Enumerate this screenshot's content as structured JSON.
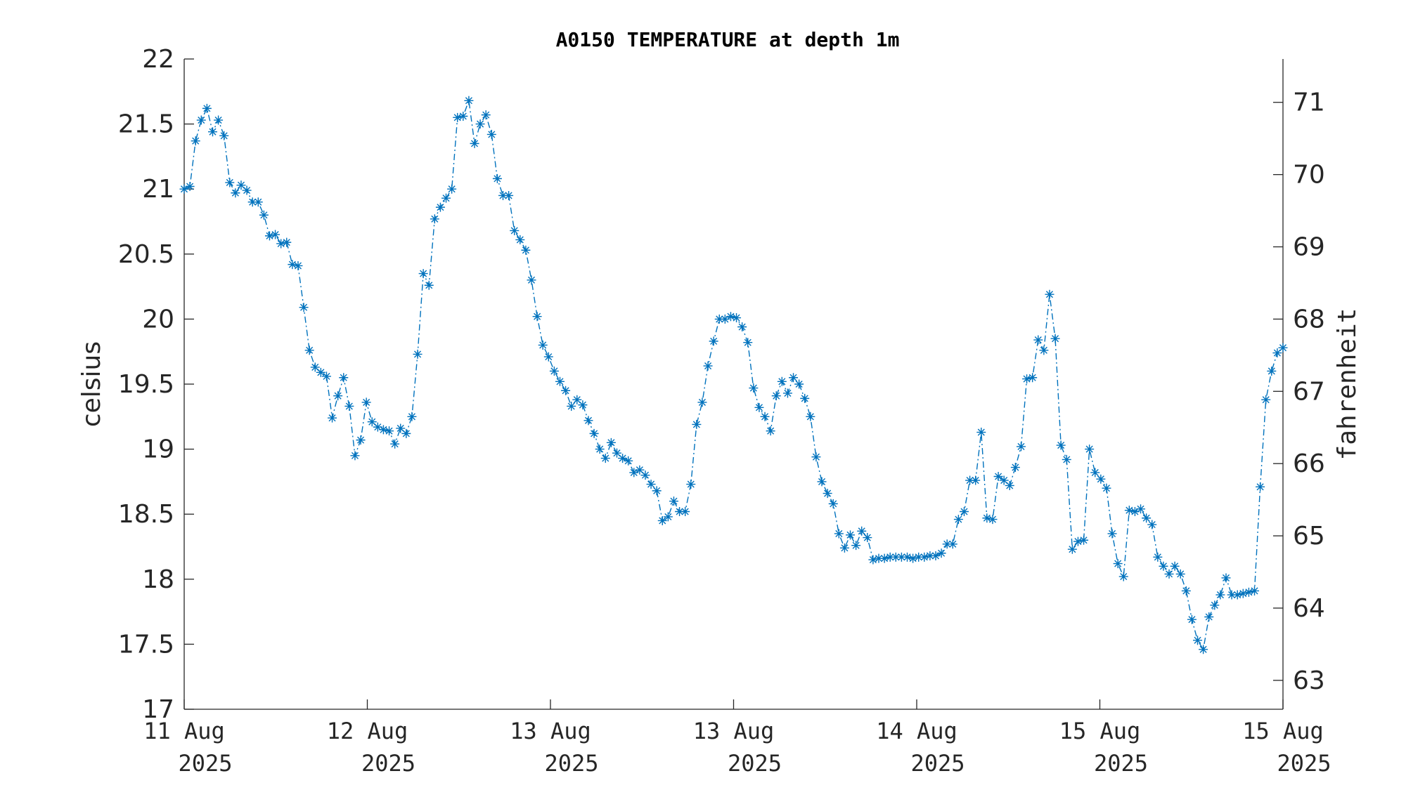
{
  "chart_data": {
    "type": "line",
    "title": "A0150 TEMPERATURE at depth 1m",
    "ylabel": "celsius",
    "ylabel_right": "fahrenheit",
    "ylim": [
      17,
      22
    ],
    "ylim_right": [
      62.6,
      71.6
    ],
    "yticks": [
      "17",
      "17.5",
      "18",
      "18.5",
      "19",
      "19.5",
      "20",
      "20.5",
      "21",
      "21.5",
      "22"
    ],
    "yticks_right": [
      "63",
      "64",
      "65",
      "66",
      "67",
      "68",
      "69",
      "70",
      "71"
    ],
    "xticks": [
      {
        "day": "11 Aug",
        "year": "2025"
      },
      {
        "day": "12 Aug",
        "year": "2025"
      },
      {
        "day": "13 Aug",
        "year": "2025"
      },
      {
        "day": "13 Aug",
        "year": "2025"
      },
      {
        "day": "14 Aug",
        "year": "2025"
      },
      {
        "day": "15 Aug",
        "year": "2025"
      },
      {
        "day": "15 Aug",
        "year": "2025"
      }
    ],
    "line_color": "#0072BD",
    "line_style": "dash-dot",
    "marker": "asterisk",
    "grid": false,
    "series": [
      {
        "values": [
          21.0,
          21.02,
          21.37,
          21.53,
          21.62,
          21.44,
          21.53,
          21.41,
          21.05,
          20.97,
          21.03,
          20.99,
          20.9,
          20.9,
          20.8,
          20.64,
          20.65,
          20.58,
          20.59,
          20.42,
          20.41,
          20.09,
          19.76,
          19.63,
          19.59,
          19.56,
          19.24,
          19.41,
          19.55,
          19.33,
          18.95,
          19.07,
          19.36,
          19.21,
          19.17,
          19.15,
          19.14,
          19.04,
          19.16,
          19.12,
          19.25,
          19.73,
          20.35,
          20.26,
          20.77,
          20.86,
          20.93,
          21.0,
          21.55,
          21.56,
          21.68,
          21.35,
          21.5,
          21.57,
          21.42,
          21.08,
          20.95,
          20.95,
          20.68,
          20.61,
          20.53,
          20.3,
          20.02,
          19.8,
          19.71,
          19.6,
          19.52,
          19.45,
          19.33,
          19.38,
          19.34,
          19.22,
          19.12,
          19.0,
          18.93,
          19.05,
          18.97,
          18.93,
          18.91,
          18.82,
          18.84,
          18.8,
          18.73,
          18.68,
          18.45,
          18.48,
          18.6,
          18.52,
          18.52,
          18.73,
          19.19,
          19.36,
          19.64,
          19.83,
          20.0,
          20.0,
          20.02,
          20.01,
          19.94,
          19.82,
          19.47,
          19.32,
          19.25,
          19.14,
          19.41,
          19.52,
          19.43,
          19.55,
          19.5,
          19.39,
          19.25,
          18.94,
          18.75,
          18.66,
          18.58,
          18.35,
          18.24,
          18.34,
          18.26,
          18.37,
          18.32,
          18.15,
          18.16,
          18.16,
          18.17,
          18.17,
          18.17,
          18.17,
          18.16,
          18.17,
          18.17,
          18.18,
          18.18,
          18.2,
          18.27,
          18.27,
          18.46,
          18.52,
          18.76,
          18.76,
          19.13,
          18.47,
          18.46,
          18.79,
          18.76,
          18.72,
          18.86,
          19.02,
          19.54,
          19.55,
          19.84,
          19.76,
          20.19,
          19.85,
          19.03,
          18.92,
          18.23,
          18.29,
          18.3,
          19.0,
          18.82,
          18.77,
          18.7,
          18.35,
          18.12,
          18.02,
          18.53,
          18.52,
          18.54,
          18.47,
          18.42,
          18.17,
          18.1,
          18.04,
          18.1,
          18.04,
          17.91,
          17.69,
          17.53,
          17.46,
          17.71,
          17.8,
          17.88,
          18.01,
          17.88,
          17.88,
          17.89,
          17.9,
          17.91,
          18.71,
          19.38,
          19.6,
          19.74,
          19.78
        ]
      }
    ]
  }
}
